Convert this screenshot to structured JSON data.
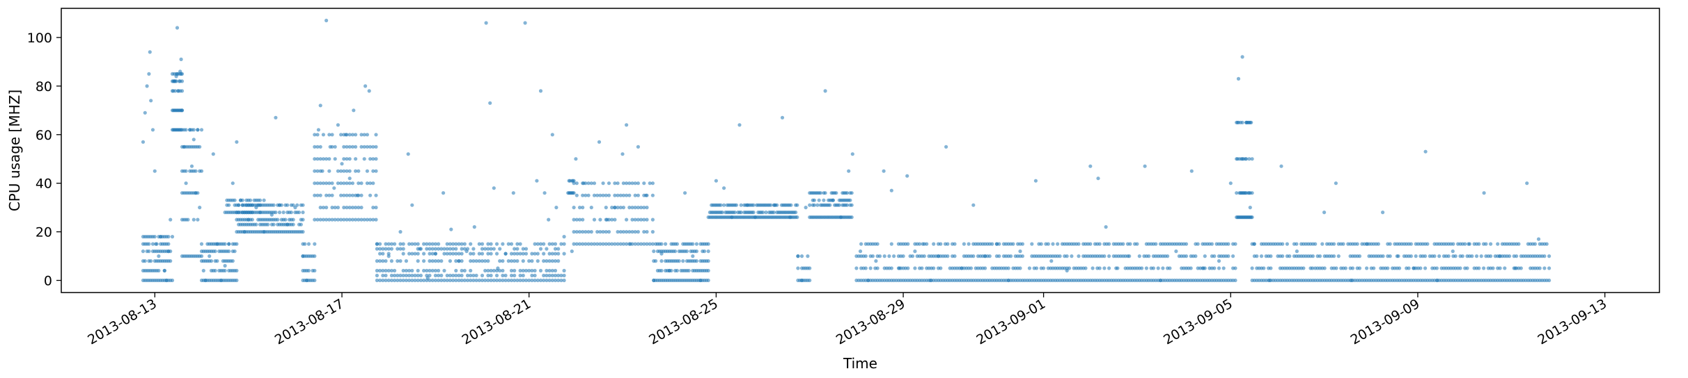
{
  "chart_data": {
    "type": "scatter",
    "title": "",
    "xlabel": "Time",
    "ylabel": "CPU usage [MHZ]",
    "xlim": [
      "2013-08-11T00:00",
      "2013-09-14T04:00"
    ],
    "ylim": [
      -5,
      112
    ],
    "grid": false,
    "legend": "none",
    "marker_color": "#1f77b4",
    "x_ticks": [
      {
        "date": "2013-08-13",
        "label": "2013-08-13"
      },
      {
        "date": "2013-08-17",
        "label": "2013-08-17"
      },
      {
        "date": "2013-08-21",
        "label": "2013-08-21"
      },
      {
        "date": "2013-08-25",
        "label": "2013-08-25"
      },
      {
        "date": "2013-08-29",
        "label": "2013-08-29"
      },
      {
        "date": "2013-09-01",
        "label": "2013-09-01"
      },
      {
        "date": "2013-09-05",
        "label": "2013-09-05"
      },
      {
        "date": "2013-09-09",
        "label": "2013-09-09"
      },
      {
        "date": "2013-09-13",
        "label": "2013-09-13"
      }
    ],
    "y_ticks": [
      0,
      20,
      40,
      60,
      80,
      100
    ],
    "series": [
      {
        "points": [
          [
            "2013-08-12T18:00",
            57
          ],
          [
            "2013-08-12T19:00",
            69
          ],
          [
            "2013-08-12T20:00",
            80
          ],
          [
            "2013-08-12T21:00",
            85
          ],
          [
            "2013-08-12T22:00",
            74
          ],
          [
            "2013-08-12T23:00",
            62
          ],
          [
            "2013-08-13T00:00",
            45
          ],
          [
            "2013-08-12T21:30",
            94
          ],
          [
            "2013-08-13T00:30",
            15
          ],
          [
            "2013-08-13T02:00",
            10
          ],
          [
            "2013-08-13T03:00",
            18
          ],
          [
            "2013-08-13T05:00",
            4
          ],
          [
            "2013-08-13T06:00",
            0
          ],
          [
            "2013-08-13T07:00",
            12
          ],
          [
            "2013-08-13T08:00",
            25
          ],
          [
            "2013-08-13T10:00",
            82
          ],
          [
            "2013-08-13T11:00",
            84
          ],
          [
            "2013-08-13T12:00",
            78
          ],
          [
            "2013-08-13T13:00",
            86
          ],
          [
            "2013-08-13T11:30",
            104
          ],
          [
            "2013-08-13T13:30",
            91
          ],
          [
            "2013-08-13T14:00",
            70
          ],
          [
            "2013-08-13T15:00",
            55
          ],
          [
            "2013-08-13T16:00",
            40
          ],
          [
            "2013-08-13T17:00",
            25
          ],
          [
            "2013-08-13T18:00",
            62
          ],
          [
            "2013-08-13T19:00",
            47
          ],
          [
            "2013-08-13T20:00",
            58
          ],
          [
            "2013-08-13T21:00",
            36
          ],
          [
            "2013-08-13T22:00",
            62
          ],
          [
            "2013-08-13T23:00",
            30
          ],
          [
            "2013-08-14T00:00",
            15
          ],
          [
            "2013-08-14T02:00",
            0
          ],
          [
            "2013-08-14T04:00",
            10
          ],
          [
            "2013-08-14T06:00",
            52
          ],
          [
            "2013-08-14T08:00",
            15
          ],
          [
            "2013-08-14T10:00",
            0
          ],
          [
            "2013-08-14T12:00",
            6
          ],
          [
            "2013-08-14T14:00",
            15
          ],
          [
            "2013-08-14T16:00",
            40
          ],
          [
            "2013-08-14T18:00",
            57
          ],
          [
            "2013-08-14T20:00",
            33
          ],
          [
            "2013-08-14T22:00",
            20
          ],
          [
            "2013-08-15T00:00",
            25
          ],
          [
            "2013-08-15T04:00",
            30
          ],
          [
            "2013-08-15T08:00",
            20
          ],
          [
            "2013-08-15T12:00",
            27
          ],
          [
            "2013-08-15T14:00",
            67
          ],
          [
            "2013-08-15T16:00",
            31
          ],
          [
            "2013-08-15T20:00",
            23
          ],
          [
            "2013-08-16T00:00",
            30
          ],
          [
            "2013-08-16T04:00",
            10
          ],
          [
            "2013-08-16T06:00",
            0
          ],
          [
            "2013-08-16T10:00",
            35
          ],
          [
            "2013-08-16T12:00",
            62
          ],
          [
            "2013-08-16T13:00",
            72
          ],
          [
            "2013-08-16T14:00",
            45
          ],
          [
            "2013-08-16T16:00",
            107
          ],
          [
            "2013-08-16T18:00",
            55
          ],
          [
            "2013-08-16T20:00",
            38
          ],
          [
            "2013-08-16T22:00",
            64
          ],
          [
            "2013-08-17T00:00",
            48
          ],
          [
            "2013-08-17T02:00",
            60
          ],
          [
            "2013-08-17T04:00",
            42
          ],
          [
            "2013-08-17T06:00",
            70
          ],
          [
            "2013-08-17T08:00",
            35
          ],
          [
            "2013-08-17T10:00",
            55
          ],
          [
            "2013-08-17T12:00",
            80
          ],
          [
            "2013-08-17T14:00",
            78
          ],
          [
            "2013-08-17T16:00",
            30
          ],
          [
            "2013-08-17T18:00",
            15
          ],
          [
            "2013-08-18T00:00",
            10
          ],
          [
            "2013-08-18T06:00",
            20
          ],
          [
            "2013-08-18T10:00",
            52
          ],
          [
            "2013-08-18T12:00",
            31
          ],
          [
            "2013-08-18T16:00",
            13
          ],
          [
            "2013-08-18T20:00",
            1
          ],
          [
            "2013-08-19T00:00",
            11
          ],
          [
            "2013-08-19T04:00",
            36
          ],
          [
            "2013-08-19T08:00",
            21
          ],
          [
            "2013-08-19T12:00",
            8
          ],
          [
            "2013-08-19T16:00",
            12
          ],
          [
            "2013-08-19T20:00",
            22
          ],
          [
            "2013-08-20T02:00",
            106
          ],
          [
            "2013-08-20T04:00",
            73
          ],
          [
            "2013-08-20T06:00",
            38
          ],
          [
            "2013-08-20T08:00",
            5
          ],
          [
            "2013-08-20T12:00",
            11
          ],
          [
            "2013-08-20T16:00",
            36
          ],
          [
            "2013-08-20T22:00",
            106
          ],
          [
            "2013-08-21T04:00",
            41
          ],
          [
            "2013-08-21T06:00",
            78
          ],
          [
            "2013-08-21T08:00",
            36
          ],
          [
            "2013-08-21T10:00",
            25
          ],
          [
            "2013-08-21T12:00",
            60
          ],
          [
            "2013-08-21T14:00",
            30
          ],
          [
            "2013-08-21T18:00",
            18
          ],
          [
            "2013-08-21T22:00",
            12
          ],
          [
            "2013-08-22T00:00",
            50
          ],
          [
            "2013-08-22T04:00",
            40
          ],
          [
            "2013-08-22T08:00",
            20
          ],
          [
            "2013-08-22T12:00",
            57
          ],
          [
            "2013-08-22T16:00",
            25
          ],
          [
            "2013-08-22T20:00",
            30
          ],
          [
            "2013-08-23T00:00",
            52
          ],
          [
            "2013-08-23T02:00",
            64
          ],
          [
            "2013-08-23T04:00",
            15
          ],
          [
            "2013-08-23T08:00",
            55
          ],
          [
            "2013-08-23T12:00",
            35
          ],
          [
            "2013-08-23T16:00",
            0
          ],
          [
            "2013-08-23T20:00",
            11
          ],
          [
            "2013-08-24T00:00",
            4
          ],
          [
            "2013-08-24T04:00",
            15
          ],
          [
            "2013-08-24T08:00",
            36
          ],
          [
            "2013-08-24T12:00",
            10
          ],
          [
            "2013-08-24T16:00",
            0
          ],
          [
            "2013-08-24T20:00",
            15
          ],
          [
            "2013-08-25T00:00",
            41
          ],
          [
            "2013-08-25T04:00",
            38
          ],
          [
            "2013-08-25T08:00",
            26
          ],
          [
            "2013-08-25T12:00",
            64
          ],
          [
            "2013-08-25T16:00",
            31
          ],
          [
            "2013-08-25T20:00",
            26
          ],
          [
            "2013-08-26T00:00",
            28
          ],
          [
            "2013-08-26T06:00",
            31
          ],
          [
            "2013-08-26T10:00",
            67
          ],
          [
            "2013-08-26T14:00",
            26
          ],
          [
            "2013-08-26T18:00",
            10
          ],
          [
            "2013-08-26T20:00",
            0
          ],
          [
            "2013-08-26T22:00",
            30
          ],
          [
            "2013-08-27T04:00",
            36
          ],
          [
            "2013-08-27T08:00",
            78
          ],
          [
            "2013-08-27T12:00",
            33
          ],
          [
            "2013-08-27T16:00",
            26
          ],
          [
            "2013-08-27T20:00",
            45
          ],
          [
            "2013-08-27T22:00",
            52
          ],
          [
            "2013-08-28T02:00",
            12
          ],
          [
            "2013-08-28T06:00",
            0
          ],
          [
            "2013-08-28T10:00",
            8
          ],
          [
            "2013-08-28T14:00",
            45
          ],
          [
            "2013-08-28T18:00",
            37
          ],
          [
            "2013-08-28T22:00",
            5
          ],
          [
            "2013-08-29T02:00",
            43
          ],
          [
            "2013-08-29T06:00",
            12
          ],
          [
            "2013-08-29T10:00",
            15
          ],
          [
            "2013-08-29T14:00",
            0
          ],
          [
            "2013-08-29T18:00",
            10
          ],
          [
            "2013-08-29T22:00",
            55
          ],
          [
            "2013-08-30T06:00",
            5
          ],
          [
            "2013-08-30T12:00",
            31
          ],
          [
            "2013-08-30T18:00",
            10
          ],
          [
            "2013-08-31T00:00",
            15
          ],
          [
            "2013-08-31T06:00",
            0
          ],
          [
            "2013-08-31T12:00",
            12
          ],
          [
            "2013-08-31T20:00",
            41
          ],
          [
            "2013-09-01T04:00",
            8
          ],
          [
            "2013-09-01T12:00",
            4
          ],
          [
            "2013-09-01T18:00",
            15
          ],
          [
            "2013-09-02T00:00",
            47
          ],
          [
            "2013-09-02T04:00",
            42
          ],
          [
            "2013-09-02T08:00",
            22
          ],
          [
            "2013-09-02T14:00",
            5
          ],
          [
            "2013-09-02T20:00",
            10
          ],
          [
            "2013-09-03T04:00",
            47
          ],
          [
            "2013-09-03T12:00",
            0
          ],
          [
            "2013-09-03T20:00",
            12
          ],
          [
            "2013-09-04T04:00",
            45
          ],
          [
            "2013-09-04T10:00",
            5
          ],
          [
            "2013-09-04T18:00",
            8
          ],
          [
            "2013-09-05T00:00",
            40
          ],
          [
            "2013-09-05T04:00",
            83
          ],
          [
            "2013-09-05T06:00",
            92
          ],
          [
            "2013-09-05T08:00",
            65
          ],
          [
            "2013-09-05T10:00",
            30
          ],
          [
            "2013-09-05T12:00",
            15
          ],
          [
            "2013-09-05T20:00",
            0
          ],
          [
            "2013-09-06T02:00",
            47
          ],
          [
            "2013-09-06T10:00",
            12
          ],
          [
            "2013-09-06T18:00",
            5
          ],
          [
            "2013-09-07T00:00",
            28
          ],
          [
            "2013-09-07T06:00",
            40
          ],
          [
            "2013-09-07T14:00",
            0
          ],
          [
            "2013-09-07T22:00",
            15
          ],
          [
            "2013-09-08T06:00",
            28
          ],
          [
            "2013-09-08T14:00",
            10
          ],
          [
            "2013-09-08T22:00",
            5
          ],
          [
            "2013-09-09T04:00",
            53
          ],
          [
            "2013-09-09T10:00",
            0
          ],
          [
            "2013-09-09T18:00",
            12
          ],
          [
            "2013-09-10T02:00",
            15
          ],
          [
            "2013-09-10T10:00",
            36
          ],
          [
            "2013-09-10T18:00",
            10
          ],
          [
            "2013-09-11T02:00",
            5
          ],
          [
            "2013-09-11T08:00",
            40
          ],
          [
            "2013-09-11T14:00",
            17
          ]
        ],
        "bands": [
          {
            "from": "2013-08-12T18:00",
            "to": "2013-08-13T09:00",
            "levels": [
              0,
              4,
              8,
              12,
              15,
              18
            ],
            "step_hours": 1.0
          },
          {
            "from": "2013-08-13T09:00",
            "to": "2013-08-13T14:00",
            "levels": [
              62,
              70,
              78,
              82,
              85
            ],
            "step_hours": 0.5
          },
          {
            "from": "2013-08-13T14:00",
            "to": "2013-08-14T00:00",
            "levels": [
              10,
              25,
              36,
              45,
              55,
              62
            ],
            "step_hours": 1.0
          },
          {
            "from": "2013-08-14T00:00",
            "to": "2013-08-14T18:00",
            "levels": [
              0,
              4,
              8,
              12,
              15
            ],
            "step_hours": 1.0
          },
          {
            "from": "2013-08-14T12:00",
            "to": "2013-08-15T08:00",
            "levels": [
              28,
              31,
              33
            ],
            "step_hours": 1.0
          },
          {
            "from": "2013-08-14T18:00",
            "to": "2013-08-16T04:00",
            "levels": [
              20,
              23,
              25,
              28,
              31
            ],
            "step_hours": 1.0
          },
          {
            "from": "2013-08-16T04:00",
            "to": "2013-08-16T10:00",
            "levels": [
              0,
              4,
              10,
              15
            ],
            "step_hours": 1.0
          },
          {
            "from": "2013-08-16T10:00",
            "to": "2013-08-17T18:00",
            "levels": [
              25,
              30,
              35,
              40,
              45,
              50,
              55,
              60
            ],
            "step_hours": 1.5
          },
          {
            "from": "2013-08-17T18:00",
            "to": "2013-08-21T18:00",
            "levels": [
              0,
              2,
              4,
              8,
              11,
              13,
              15
            ],
            "step_hours": 1.5
          },
          {
            "from": "2013-08-21T20:00",
            "to": "2013-08-21T23:00",
            "levels": [
              36,
              41
            ],
            "step_hours": 0.5
          },
          {
            "from": "2013-08-21T23:00",
            "to": "2013-08-23T16:00",
            "levels": [
              15,
              20,
              25,
              30,
              35,
              40
            ],
            "step_hours": 1.5
          },
          {
            "from": "2013-08-23T16:00",
            "to": "2013-08-24T20:00",
            "levels": [
              0,
              4,
              8,
              12,
              15
            ],
            "step_hours": 1.0
          },
          {
            "from": "2013-08-24T20:00",
            "to": "2013-08-26T18:00",
            "levels": [
              26,
              28,
              31
            ],
            "step_hours": 0.8
          },
          {
            "from": "2013-08-26T18:00",
            "to": "2013-08-27T00:00",
            "levels": [
              0,
              5,
              10
            ],
            "step_hours": 1.0
          },
          {
            "from": "2013-08-27T00:00",
            "to": "2013-08-27T22:00",
            "levels": [
              26,
              31,
              33,
              36
            ],
            "step_hours": 0.8
          },
          {
            "from": "2013-08-28T00:00",
            "to": "2013-09-05T03:00",
            "levels": [
              0,
              5,
              10,
              15
            ],
            "step_hours": 1.2
          },
          {
            "from": "2013-09-05T03:00",
            "to": "2013-09-05T11:00",
            "levels": [
              26,
              36,
              50,
              65
            ],
            "step_hours": 0.5
          },
          {
            "from": "2013-09-05T11:00",
            "to": "2013-09-11T20:00",
            "levels": [
              0,
              5,
              10,
              15
            ],
            "step_hours": 1.2
          }
        ]
      }
    ]
  }
}
